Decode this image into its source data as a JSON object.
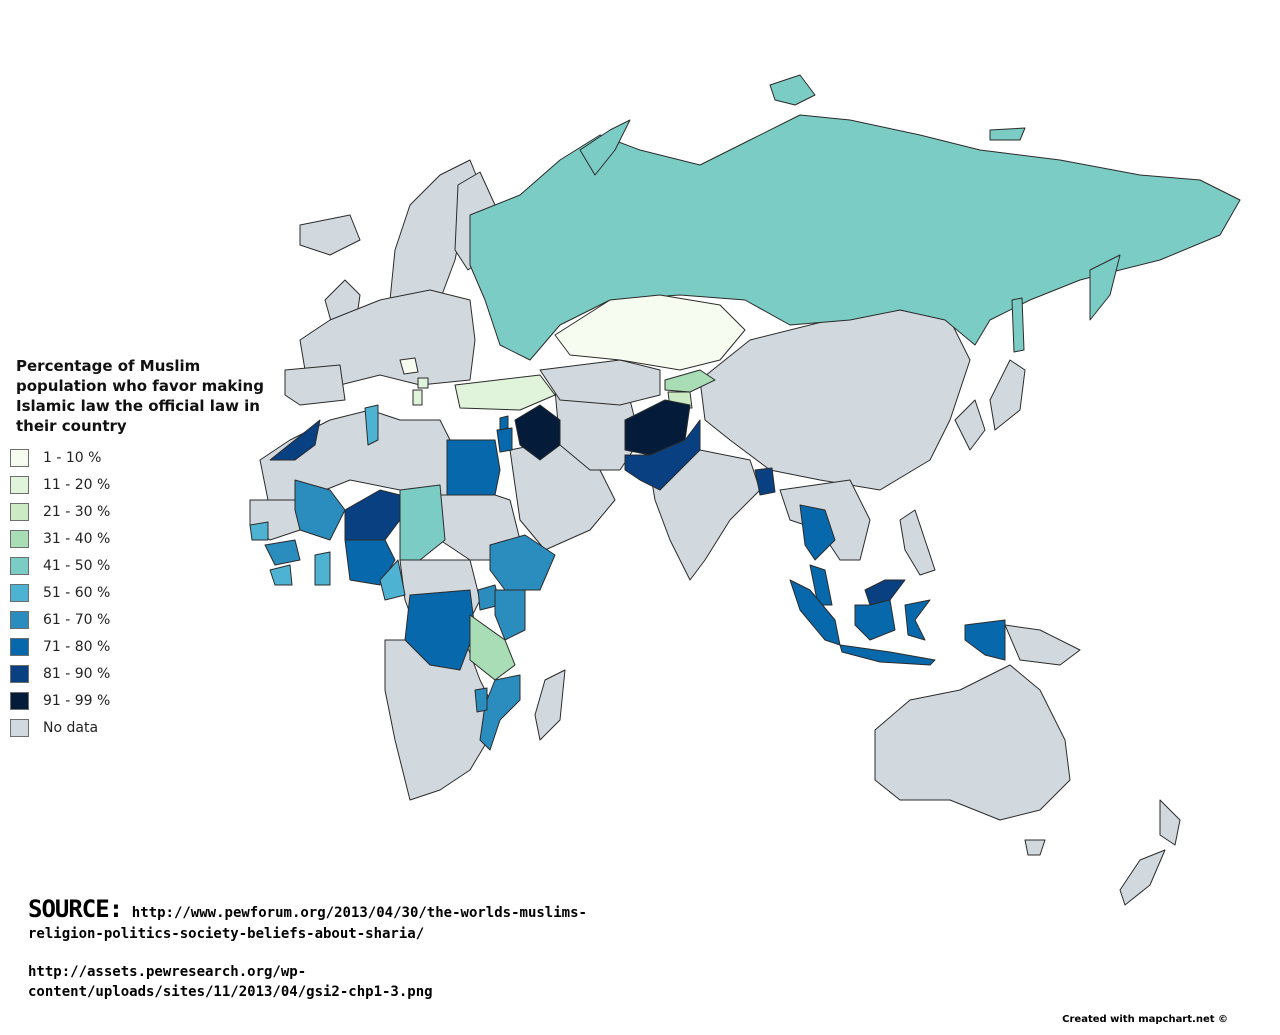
{
  "legend": {
    "title": "Percentage of Muslim population who favor making Islamic law the official law in their country",
    "items": [
      {
        "label": "1 - 10 %",
        "color": "#f7fcf0"
      },
      {
        "label": "11 - 20 %",
        "color": "#e0f3db"
      },
      {
        "label": "21 - 30 %",
        "color": "#ccebc5"
      },
      {
        "label": "31 - 40 %",
        "color": "#a8ddb5"
      },
      {
        "label": "41 - 50 %",
        "color": "#7bccc4"
      },
      {
        "label": "51 - 60 %",
        "color": "#4eb3d3"
      },
      {
        "label": "61 - 70 %",
        "color": "#2b8cbe"
      },
      {
        "label": "71 - 80 %",
        "color": "#0868ac"
      },
      {
        "label": "81 - 90 %",
        "color": "#084081"
      },
      {
        "label": "91 - 99 %",
        "color": "#041c3a"
      },
      {
        "label": "No data",
        "color": "#d2d9de"
      }
    ]
  },
  "source": {
    "heading": "SOURCE:",
    "url1": "http://www.pewforum.org/2013/04/30/the-worlds-muslims-religion-politics-society-beliefs-about-sharia/",
    "url2": "http://assets.pewresearch.org/wp-content/uploads/sites/11/2013/04/gsi2-chp1-3.png"
  },
  "credit": "Created with mapchart.net ©",
  "map_colors": {
    "no_data": "#d2d9de",
    "border": "#2b2b2b"
  }
}
